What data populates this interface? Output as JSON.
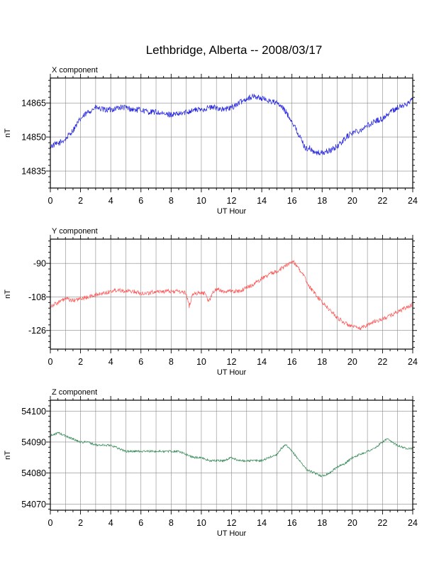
{
  "figure_title": "Lethbridge, Alberta -- 2008/03/17",
  "chart_data": [
    {
      "type": "line",
      "title": "X component",
      "xlabel": "UT Hour",
      "ylabel": "nT",
      "xlim": [
        0,
        24
      ],
      "ylim": [
        14827.5,
        14876
      ],
      "x_ticks": [
        0,
        2,
        4,
        6,
        8,
        10,
        12,
        14,
        16,
        18,
        20,
        22,
        24
      ],
      "y_ticks": [
        14835,
        14850,
        14865
      ],
      "grid": true,
      "color": "#2222dd",
      "noise": 1.3,
      "series": [
        {
          "x": [
            0,
            0.5,
            1.0,
            1.5,
            2.0,
            2.5,
            3.0,
            3.5,
            4.0,
            4.5,
            5.0,
            5.5,
            6.0,
            6.5,
            7.0,
            7.5,
            8.0,
            8.5,
            9.0,
            9.5,
            10.0,
            10.5,
            11.0,
            11.5,
            12.0,
            12.5,
            13.0,
            13.5,
            14.0,
            14.5,
            15.0,
            15.5,
            16.0,
            16.3,
            16.6,
            16.9,
            17.2,
            17.5,
            18.0,
            18.5,
            18.8,
            19.2,
            19.6,
            20.0,
            20.5,
            21.0,
            21.5,
            22.0,
            22.5,
            23.0,
            23.5,
            24.0
          ],
          "values": [
            14846,
            14847,
            14849,
            14853,
            14858,
            14861,
            14863,
            14862,
            14862,
            14863,
            14863,
            14862,
            14862,
            14861,
            14861,
            14860,
            14860,
            14860,
            14861,
            14862,
            14862,
            14863,
            14863,
            14862,
            14863,
            14865,
            14867,
            14868,
            14867,
            14866,
            14865,
            14862,
            14857,
            14853,
            14849,
            14845,
            14845,
            14843,
            14843,
            14844,
            14845,
            14847,
            14850,
            14852,
            14853,
            14855,
            14857,
            14858,
            14861,
            14863,
            14864,
            14867
          ]
        }
      ]
    },
    {
      "type": "line",
      "title": "Y component",
      "xlabel": "UT Hour",
      "ylabel": "nT",
      "xlim": [
        0,
        24
      ],
      "ylim": [
        -136,
        -77
      ],
      "x_ticks": [
        0,
        2,
        4,
        6,
        8,
        10,
        12,
        14,
        16,
        18,
        20,
        22,
        24
      ],
      "y_ticks": [
        -90,
        -108,
        -126
      ],
      "grid": true,
      "color": "#ff5555",
      "noise": 1.1,
      "series": [
        {
          "x": [
            0,
            0.5,
            1.0,
            1.5,
            2.0,
            2.5,
            3.0,
            3.5,
            4.0,
            4.5,
            5.0,
            5.5,
            6.0,
            6.5,
            7.0,
            7.5,
            8.0,
            8.5,
            9.0,
            9.2,
            9.4,
            9.6,
            10.0,
            10.3,
            10.5,
            10.7,
            11.0,
            11.5,
            12.0,
            12.5,
            13.0,
            13.5,
            14.0,
            14.5,
            15.0,
            15.5,
            15.8,
            16.1,
            16.4,
            16.8,
            17.2,
            17.6,
            18.0,
            18.5,
            19.0,
            19.5,
            20.0,
            20.5,
            21.0,
            21.5,
            22.0,
            22.5,
            23.0,
            23.5,
            24.0
          ],
          "values": [
            -113,
            -111,
            -109,
            -110,
            -109,
            -108,
            -107,
            -106,
            -105,
            -104,
            -105,
            -105,
            -106,
            -106,
            -105,
            -105,
            -105,
            -105,
            -106,
            -113,
            -107,
            -106,
            -106,
            -106,
            -111,
            -106,
            -104,
            -105,
            -105,
            -105,
            -103,
            -101,
            -98,
            -96,
            -94,
            -92,
            -90,
            -89,
            -92,
            -97,
            -103,
            -107,
            -111,
            -115,
            -119,
            -122,
            -124,
            -125,
            -123,
            -121,
            -120,
            -118,
            -116,
            -114,
            -112
          ]
        }
      ]
    },
    {
      "type": "line",
      "title": "Z component",
      "xlabel": "UT Hour",
      "ylabel": "nT",
      "xlim": [
        0,
        24
      ],
      "ylim": [
        54068,
        54103.5
      ],
      "x_ticks": [
        0,
        2,
        4,
        6,
        8,
        10,
        12,
        14,
        16,
        18,
        20,
        22,
        24
      ],
      "y_ticks": [
        54070,
        54080,
        54090,
        54100
      ],
      "grid": true,
      "color": "#338855",
      "noise": 0.35,
      "series": [
        {
          "x": [
            0,
            0.5,
            1.0,
            1.5,
            2.0,
            2.5,
            3.0,
            3.5,
            4.0,
            4.5,
            5.0,
            5.5,
            6.0,
            6.5,
            7.0,
            7.5,
            8.0,
            8.5,
            9.0,
            9.5,
            10.0,
            10.5,
            11.0,
            11.5,
            12.0,
            12.5,
            13.0,
            13.5,
            14.0,
            14.5,
            15.0,
            15.3,
            15.6,
            16.0,
            16.5,
            17.0,
            17.5,
            18.0,
            18.5,
            19.0,
            19.5,
            20.0,
            20.5,
            21.0,
            21.5,
            22.0,
            22.3,
            22.6,
            23.0,
            23.5,
            24.0
          ],
          "values": [
            54092,
            54093,
            54092,
            54091,
            54090,
            54090,
            54089,
            54089,
            54089,
            54088,
            54087,
            54087,
            54087,
            54087,
            54087,
            54087,
            54087,
            54087,
            54086,
            54085,
            54085,
            54084,
            54084,
            54084,
            54085,
            54084,
            54084,
            54084,
            54084,
            54085,
            54086,
            54088,
            54089,
            54087,
            54084,
            54081,
            54080,
            54079,
            54080,
            54082,
            54083,
            54085,
            54086,
            54087,
            54088,
            54090,
            54091,
            54090,
            54089,
            54088,
            54088
          ]
        }
      ]
    }
  ]
}
